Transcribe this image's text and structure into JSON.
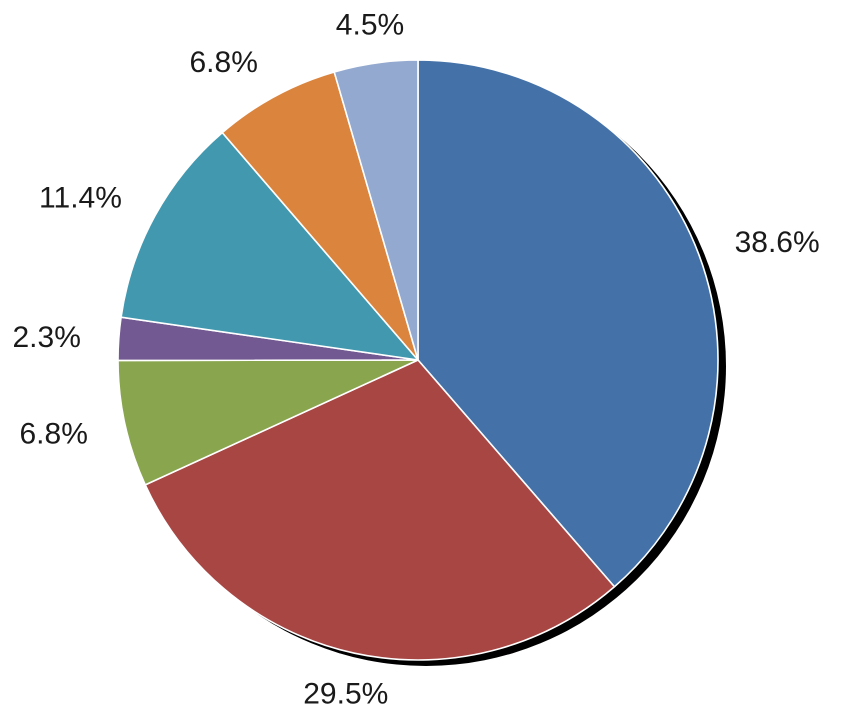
{
  "chart_data": {
    "type": "pie",
    "start_angle": "12 o'clock",
    "direction": "clockwise",
    "has_shadow": true,
    "legend": "none",
    "slices": [
      {
        "label": "38.6%",
        "value": 38.6,
        "color": "#4472a8"
      },
      {
        "label": "29.5%",
        "value": 29.5,
        "color": "#a84644"
      },
      {
        "label": "6.8%",
        "value": 6.8,
        "color": "#89a54e"
      },
      {
        "label": "2.3%",
        "value": 2.3,
        "color": "#725991"
      },
      {
        "label": "11.4%",
        "value": 11.4,
        "color": "#4198af"
      },
      {
        "label": "6.8%",
        "value": 6.8,
        "color": "#db843d"
      },
      {
        "label": "4.5%",
        "value": 4.5,
        "color": "#93a9cf"
      }
    ]
  }
}
